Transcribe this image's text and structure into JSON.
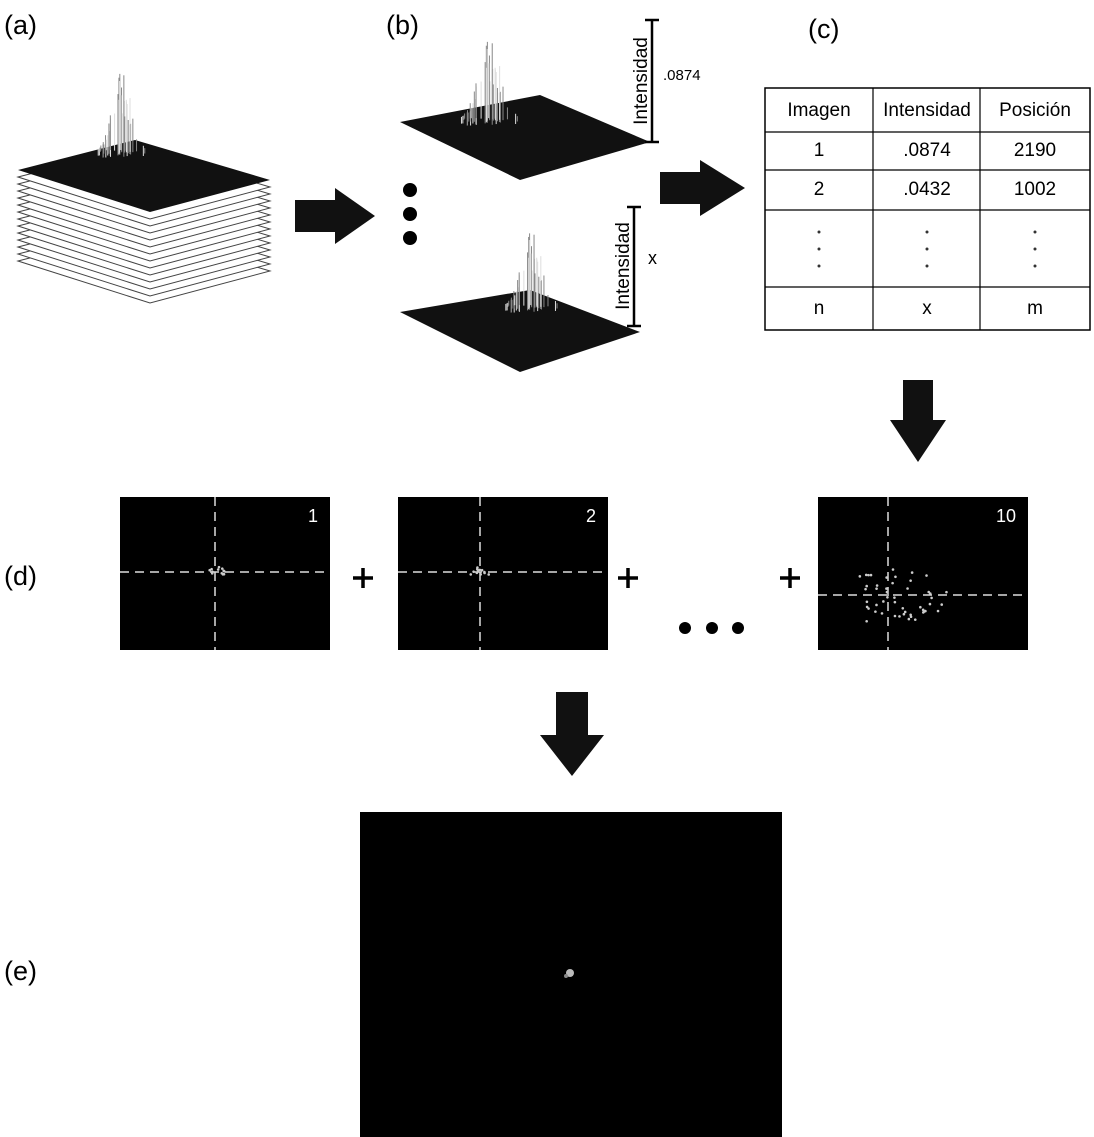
{
  "labels": {
    "a": "(a)",
    "b": "(b)",
    "c": "(c)",
    "d": "(d)",
    "e": "(e)"
  },
  "panel_b": {
    "top_axis_label": "Intensidad",
    "top_value": ".0874",
    "bottom_axis_label": "Intensidad",
    "bottom_value": "x"
  },
  "table": {
    "headers": [
      "Imagen",
      "Intensidad",
      "Posición"
    ],
    "rows": [
      [
        "1",
        ".0874",
        "2190"
      ],
      [
        "2",
        ".0432",
        "1002"
      ],
      [
        "n",
        "x",
        "m"
      ]
    ]
  },
  "panel_d": {
    "frames": [
      "1",
      "2",
      "10"
    ]
  }
}
